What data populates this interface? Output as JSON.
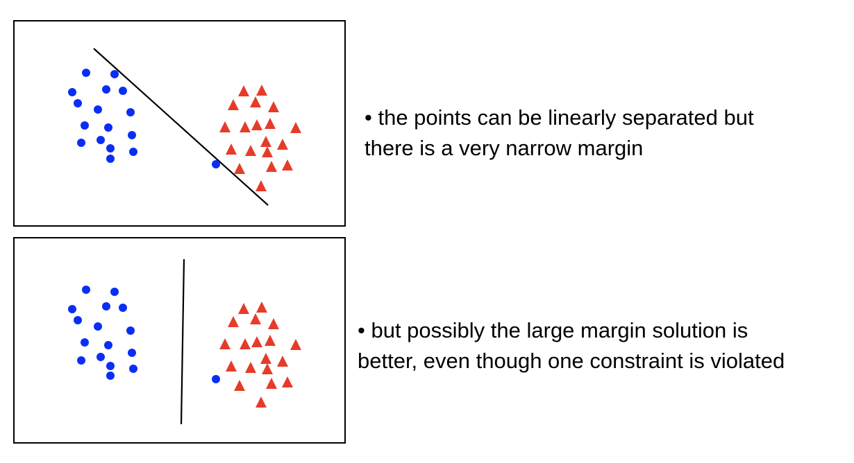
{
  "colors": {
    "blue_points": "#0a2ef5",
    "red_points": "#e53c2a",
    "line": "#000000"
  },
  "panels": {
    "top": {
      "captions": [
        "• the points can be linearly separated but",
        "there is a very narrow margin"
      ]
    },
    "bottom": {
      "captions": [
        "• but possibly the large margin solution is",
        "better, even though one constraint is violated"
      ]
    }
  },
  "chart_data": [
    {
      "type": "scatter",
      "series": [
        {
          "marker": "circle",
          "color": "#0a2ef5",
          "points": [
            [
              124,
              105
            ],
            [
              165,
              107
            ],
            [
              104,
              133
            ],
            [
              153,
              129
            ],
            [
              177,
              131
            ],
            [
              112,
              149
            ],
            [
              141,
              158
            ],
            [
              188,
              162
            ],
            [
              122,
              181
            ],
            [
              156,
              184
            ],
            [
              190,
              195
            ],
            [
              117,
              206
            ],
            [
              145,
              202
            ],
            [
              159,
              214
            ],
            [
              192,
              219
            ],
            [
              159,
              229
            ],
            [
              311,
              237
            ]
          ]
        },
        {
          "marker": "triangle",
          "color": "#e53c2a",
          "points": [
            [
              351,
              131
            ],
            [
              377,
              130
            ],
            [
              336,
              151
            ],
            [
              368,
              147
            ],
            [
              394,
              154
            ],
            [
              324,
              183
            ],
            [
              353,
              183
            ],
            [
              370,
              180
            ],
            [
              389,
              178
            ],
            [
              426,
              184
            ],
            [
              383,
              204
            ],
            [
              407,
              208
            ],
            [
              333,
              215
            ],
            [
              361,
              217
            ],
            [
              385,
              219
            ],
            [
              345,
              243
            ],
            [
              391,
              240
            ],
            [
              414,
              238
            ],
            [
              376,
              268
            ]
          ]
        }
      ],
      "separator": {
        "from": [
          135,
          70
        ],
        "to": [
          386,
          296
        ]
      }
    },
    {
      "type": "scatter",
      "series": [
        {
          "marker": "circle",
          "color": "#0a2ef5",
          "points": [
            [
              124,
              418
            ],
            [
              165,
              421
            ],
            [
              104,
              446
            ],
            [
              153,
              442
            ],
            [
              177,
              444
            ],
            [
              112,
              462
            ],
            [
              141,
              471
            ],
            [
              188,
              477
            ],
            [
              122,
              494
            ],
            [
              156,
              498
            ],
            [
              190,
              509
            ],
            [
              117,
              520
            ],
            [
              145,
              515
            ],
            [
              159,
              528
            ],
            [
              192,
              532
            ],
            [
              159,
              542
            ],
            [
              311,
              547
            ]
          ]
        },
        {
          "marker": "triangle",
          "color": "#e53c2a",
          "points": [
            [
              351,
              445
            ],
            [
              377,
              443
            ],
            [
              336,
              464
            ],
            [
              368,
              460
            ],
            [
              394,
              467
            ],
            [
              324,
              496
            ],
            [
              353,
              496
            ],
            [
              370,
              493
            ],
            [
              389,
              491
            ],
            [
              426,
              497
            ],
            [
              383,
              517
            ],
            [
              407,
              521
            ],
            [
              333,
              528
            ],
            [
              361,
              530
            ],
            [
              385,
              532
            ],
            [
              345,
              556
            ],
            [
              391,
              553
            ],
            [
              414,
              551
            ],
            [
              376,
              580
            ]
          ]
        }
      ],
      "separator": {
        "from": [
          265,
          374
        ],
        "to": [
          261,
          612
        ]
      }
    }
  ]
}
